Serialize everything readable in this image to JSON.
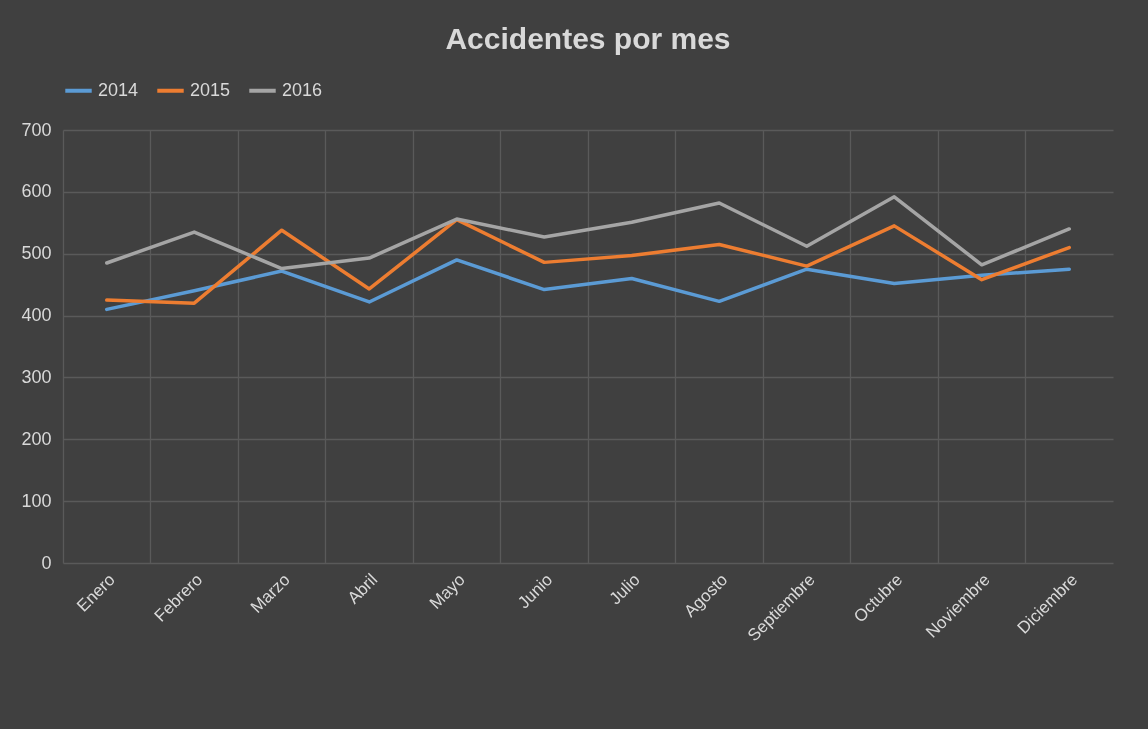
{
  "chart_data": {
    "type": "line",
    "title": "Accidentes por mes",
    "categories": [
      "Enero",
      "Febrero",
      "Marzo",
      "Abril",
      "Mayo",
      "Junio",
      "Julio",
      "Agosto",
      "Septiembre",
      "Octubre",
      "Noviembre",
      "Diciembre"
    ],
    "series": [
      {
        "name": "2014",
        "color": "#5b9bd5",
        "values": [
          410,
          440,
          472,
          422,
          490,
          442,
          460,
          423,
          475,
          452,
          465,
          475
        ]
      },
      {
        "name": "2015",
        "color": "#ed7d31",
        "values": [
          425,
          420,
          538,
          443,
          555,
          486,
          497,
          515,
          480,
          545,
          458,
          510
        ]
      },
      {
        "name": "2016",
        "color": "#a5a5a5",
        "values": [
          485,
          535,
          476,
          493,
          556,
          527,
          551,
          582,
          512,
          592,
          482,
          540
        ]
      }
    ],
    "ylim": [
      0,
      700
    ],
    "yticks": [
      0,
      100,
      200,
      300,
      400,
      500,
      600,
      700
    ],
    "grid": true,
    "legend": "top",
    "marker": "none",
    "line_style": "solid"
  }
}
